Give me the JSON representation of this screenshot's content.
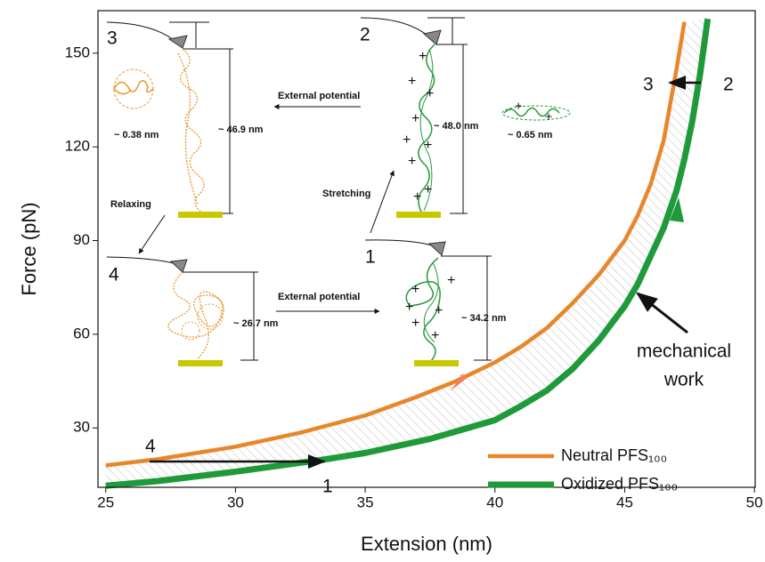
{
  "chart_data": {
    "type": "line",
    "xlabel": "Extension (nm)",
    "ylabel": "Force (pN)",
    "xlim": [
      24.7,
      50.03
    ],
    "ylim": [
      11,
      163.6
    ],
    "xticks": [
      25,
      30,
      35,
      40,
      45,
      50
    ],
    "yticks": [
      30,
      60,
      90,
      120,
      150
    ],
    "series": [
      {
        "name": "Neutral PFS₁₀₀",
        "color": "#e8862a",
        "x": [
          25,
          27,
          30,
          32.5,
          35,
          37,
          38.5,
          40,
          41,
          42,
          43,
          44,
          45,
          45.5,
          46,
          46.5,
          47,
          47.3
        ],
        "values": [
          18,
          20,
          24,
          28.5,
          34,
          40,
          45,
          51,
          56,
          62,
          70,
          79,
          90,
          98,
          108,
          122,
          145,
          160
        ]
      },
      {
        "name": "Oxidized PFS₁₀₀",
        "color": "#1f9a3a",
        "x": [
          25,
          27,
          30,
          33.5,
          35,
          37.5,
          40,
          41,
          42,
          43,
          44,
          45,
          45.5,
          46,
          46.5,
          47,
          47.3,
          47.6,
          47.9,
          48.2
        ],
        "values": [
          11.5,
          13,
          16,
          20,
          22,
          26.5,
          32.5,
          37,
          42,
          49,
          58,
          69,
          76,
          85,
          94,
          106,
          116,
          128,
          143,
          161
        ]
      }
    ],
    "point_labels": [
      "1",
      "2",
      "3",
      "4"
    ],
    "annotations": [
      "External potential",
      "Relaxing",
      "Stretching",
      "~ 0.38 nm",
      "~ 46.9 nm",
      "~ 48.0 nm",
      "~ 0.65 nm",
      "~ 26.7 nm",
      "~ 34.2 nm",
      "mechanical",
      "work"
    ]
  }
}
